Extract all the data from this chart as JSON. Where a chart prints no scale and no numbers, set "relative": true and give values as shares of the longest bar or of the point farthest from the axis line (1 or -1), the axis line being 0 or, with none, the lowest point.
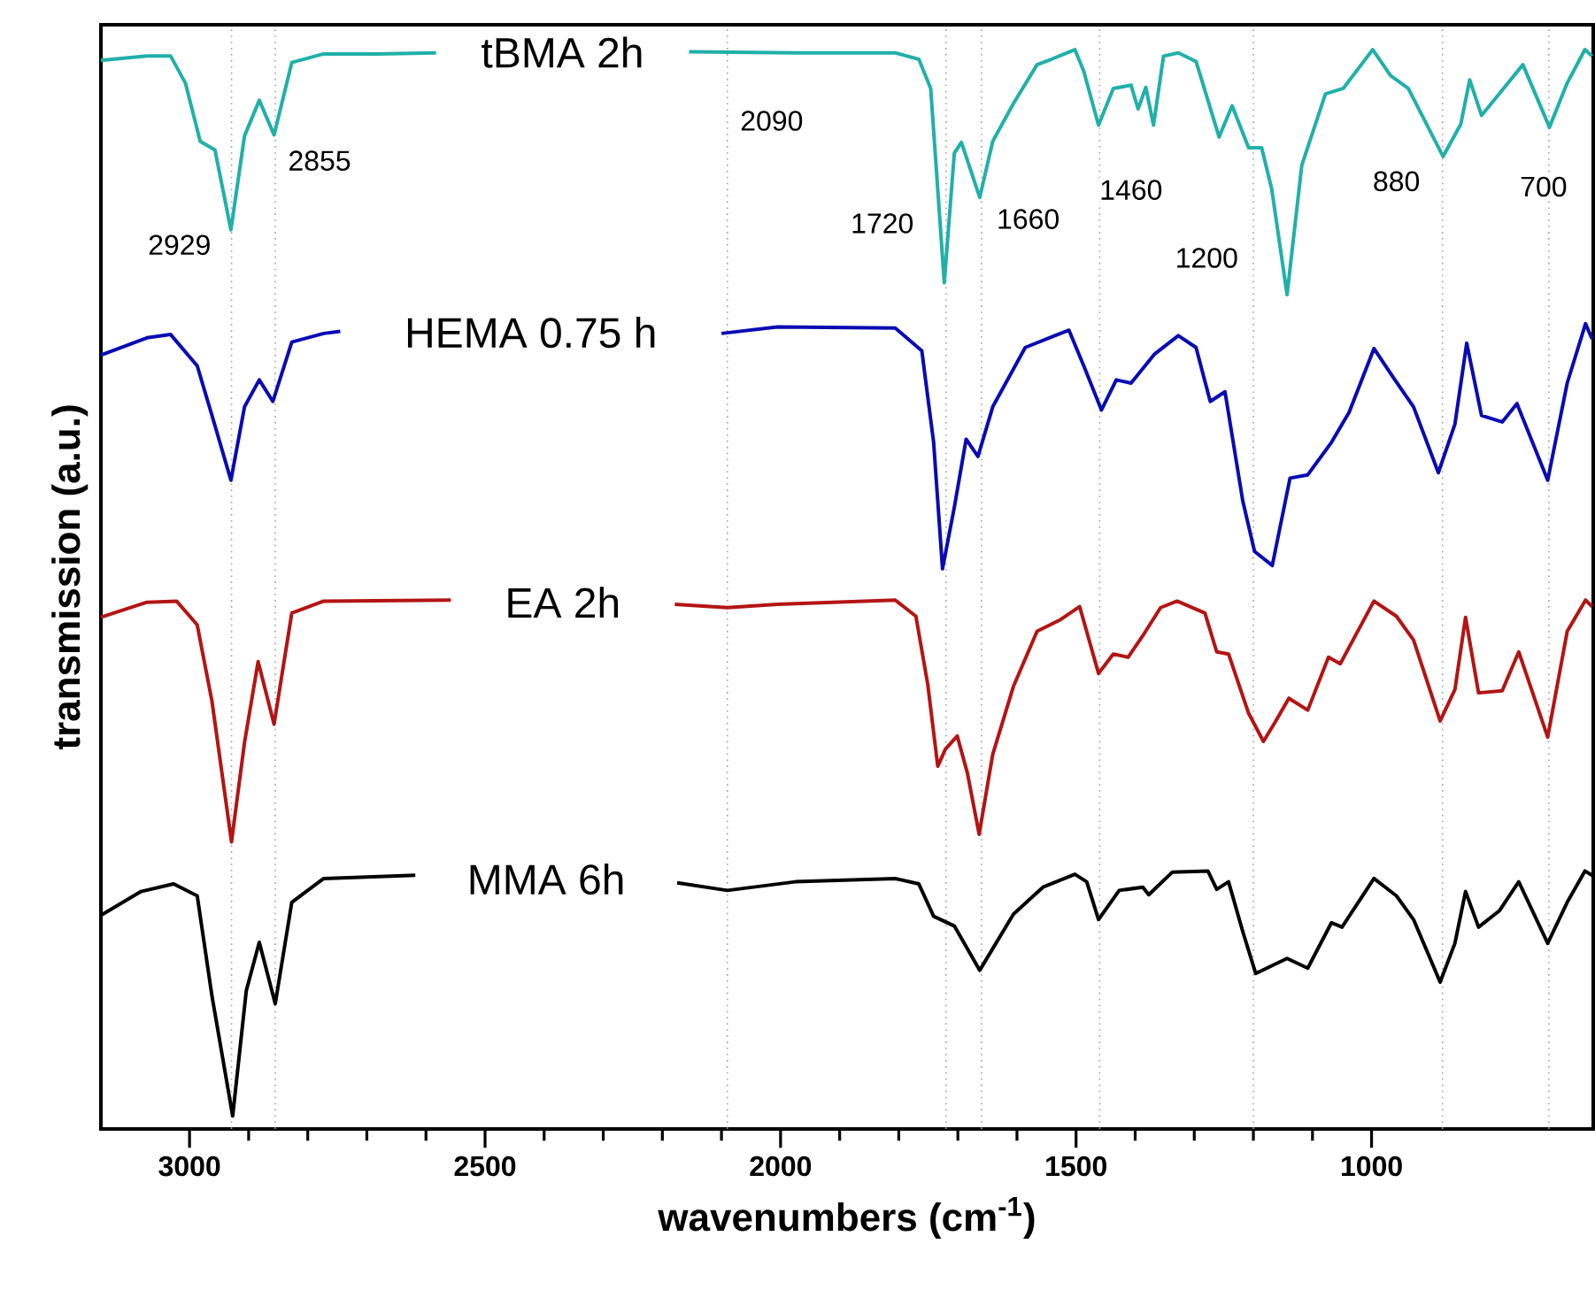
{
  "chart_data": {
    "type": "line",
    "relative": true,
    "xlabel": "wavenumbers (cm$^{-1}$)",
    "ylabel": "transmission (a.u.)",
    "xlim": [
      3150,
      625
    ],
    "xticks": [
      3000,
      2500,
      2000,
      1500,
      1000
    ],
    "line_style": "solid",
    "series": [
      {
        "name": "tBMA 2h",
        "color": "#20b0a8",
        "x": [
          3150,
          3072,
          3032,
          3007,
          2982,
          2957,
          2930,
          2907,
          2882,
          2857,
          2827,
          2773,
          2683,
          2583,
          2370,
          2155,
          1975,
          1806,
          1766,
          1746,
          1723,
          1706,
          1694,
          1663,
          1641,
          1606,
          1566,
          1542,
          1502,
          1487,
          1462,
          1437,
          1407,
          1395,
          1382,
          1369,
          1352,
          1327,
          1297,
          1258,
          1236,
          1208,
          1186,
          1169,
          1143,
          1118,
          1078,
          1048,
          998,
          968,
          938,
          879,
          849,
          834,
          814,
          784,
          744,
          699,
          669,
          639,
          627
        ],
        "values": [
          0.99,
          0.994,
          0.994,
          0.969,
          0.915,
          0.907,
          0.833,
          0.92,
          0.953,
          0.921,
          0.988,
          0.996,
          0.996,
          0.997,
          null,
          0.998,
          0.997,
          0.997,
          0.991,
          0.964,
          0.784,
          0.904,
          0.914,
          0.863,
          0.915,
          0.95,
          0.986,
          0.991,
          1.0,
          0.98,
          0.93,
          0.964,
          0.967,
          0.945,
          0.965,
          0.93,
          0.994,
          0.997,
          0.989,
          0.919,
          0.948,
          0.909,
          0.909,
          0.871,
          0.773,
          0.893,
          0.959,
          0.964,
          1.0,
          0.976,
          0.964,
          0.901,
          0.931,
          0.972,
          0.939,
          0.959,
          0.986,
          0.928,
          0.969,
          1.0,
          0.994
        ]
      },
      {
        "name": "HEMA 0.75 h",
        "color": "#0a0ab4",
        "x": [
          3150,
          3072,
          3032,
          2987,
          2962,
          2930,
          2907,
          2882,
          2859,
          2827,
          2773,
          2745,
          2420,
          2100,
          2005,
          1806,
          1761,
          1741,
          1726,
          1706,
          1686,
          1666,
          1641,
          1586,
          1536,
          1512,
          1487,
          1457,
          1432,
          1407,
          1367,
          1327,
          1297,
          1273,
          1248,
          1218,
          1198,
          1168,
          1138,
          1108,
          1068,
          1038,
          996,
          963,
          929,
          887,
          859,
          839,
          814,
          779,
          754,
          702,
          669,
          638,
          627
        ],
        "values": [
          0.717,
          0.733,
          0.736,
          0.707,
          0.661,
          0.601,
          0.669,
          0.694,
          0.674,
          0.729,
          0.737,
          0.739,
          null,
          0.737,
          0.743,
          0.742,
          0.721,
          0.636,
          0.519,
          0.576,
          0.639,
          0.623,
          0.669,
          0.724,
          0.735,
          0.74,
          0.707,
          0.666,
          0.694,
          0.691,
          0.718,
          0.735,
          0.724,
          0.674,
          0.683,
          0.582,
          0.535,
          0.522,
          0.603,
          0.606,
          0.636,
          0.664,
          0.723,
          0.696,
          0.669,
          0.608,
          0.653,
          0.728,
          0.661,
          0.655,
          0.672,
          0.601,
          0.691,
          0.746,
          0.732
        ]
      },
      {
        "name": "EA 2h",
        "color": "#b41414",
        "x": [
          3150,
          3072,
          3022,
          2987,
          2962,
          2929,
          2907,
          2884,
          2857,
          2827,
          2773,
          2558,
          2370,
          2179,
          2090,
          2005,
          1806,
          1771,
          1751,
          1734,
          1721,
          1701,
          1684,
          1664,
          1641,
          1606,
          1566,
          1526,
          1494,
          1462,
          1437,
          1412,
          1387,
          1357,
          1329,
          1282,
          1262,
          1242,
          1208,
          1183,
          1163,
          1140,
          1108,
          1073,
          1053,
          996,
          958,
          929,
          884,
          859,
          841,
          819,
          779,
          751,
          702,
          669,
          638,
          627
        ],
        "values": [
          0.474,
          0.488,
          0.489,
          0.467,
          0.396,
          0.266,
          0.358,
          0.433,
          0.375,
          0.478,
          0.489,
          0.49,
          null,
          0.486,
          0.483,
          0.486,
          0.49,
          0.475,
          0.412,
          0.336,
          0.352,
          0.364,
          0.33,
          0.273,
          0.347,
          0.41,
          0.461,
          0.472,
          0.484,
          0.422,
          0.44,
          0.437,
          0.457,
          0.483,
          0.489,
          0.478,
          0.442,
          0.44,
          0.385,
          0.359,
          0.377,
          0.399,
          0.388,
          0.437,
          0.431,
          0.489,
          0.475,
          0.453,
          0.378,
          0.407,
          0.474,
          0.404,
          0.406,
          0.442,
          0.363,
          0.461,
          0.49,
          0.484
        ]
      },
      {
        "name": "MMA 6h",
        "color": "#000000",
        "x": [
          3150,
          3082,
          3027,
          2987,
          2962,
          2927,
          2904,
          2882,
          2855,
          2827,
          2773,
          2618,
          2400,
          2175,
          2090,
          1975,
          1806,
          1766,
          1741,
          1706,
          1663,
          1606,
          1556,
          1502,
          1482,
          1462,
          1427,
          1387,
          1377,
          1337,
          1277,
          1262,
          1242,
          1218,
          1196,
          1143,
          1108,
          1068,
          1050,
          996,
          958,
          929,
          884,
          859,
          841,
          819,
          784,
          751,
          702,
          669,
          639,
          627
        ],
        "values": [
          0.198,
          0.22,
          0.227,
          0.216,
          0.123,
          0.012,
          0.128,
          0.173,
          0.116,
          0.21,
          0.232,
          0.235,
          null,
          0.228,
          0.221,
          0.229,
          0.232,
          0.227,
          0.197,
          0.188,
          0.147,
          0.199,
          0.224,
          0.236,
          0.229,
          0.194,
          0.221,
          0.224,
          0.217,
          0.238,
          0.239,
          0.222,
          0.229,
          0.183,
          0.144,
          0.158,
          0.149,
          0.191,
          0.187,
          0.232,
          0.216,
          0.194,
          0.136,
          0.172,
          0.22,
          0.187,
          0.202,
          0.229,
          0.172,
          0.21,
          0.239,
          0.235
        ]
      }
    ],
    "ref_lines": [
      {
        "axis": "x",
        "value": 2929,
        "color": "#a0a0a0",
        "line_style": "dotted"
      },
      {
        "axis": "x",
        "value": 2855,
        "color": "#a0a0a0",
        "line_style": "dotted"
      },
      {
        "axis": "x",
        "value": 2090,
        "color": "#a0a0a0",
        "line_style": "dotted"
      },
      {
        "axis": "x",
        "value": 1720,
        "color": "#a0a0a0",
        "line_style": "dotted"
      },
      {
        "axis": "x",
        "value": 1660,
        "color": "#a0a0a0",
        "line_style": "dotted"
      },
      {
        "axis": "x",
        "value": 1460,
        "color": "#a0a0a0",
        "line_style": "dotted"
      },
      {
        "axis": "x",
        "value": 1200,
        "color": "#a0a0a0",
        "line_style": "dotted"
      },
      {
        "axis": "x",
        "value": 880,
        "color": "#a0a0a0",
        "line_style": "dotted"
      },
      {
        "axis": "x",
        "value": 700,
        "color": "#a0a0a0",
        "line_style": "dotted"
      }
    ],
    "annotations": [
      {
        "text": "2929",
        "x": 3017,
        "y": 0.819
      },
      {
        "text": "2855",
        "x": 2780,
        "y": 0.897
      },
      {
        "text": "2090",
        "x": 2015,
        "y": 0.934
      },
      {
        "text": "1720",
        "x": 1828,
        "y": 0.839
      },
      {
        "text": "1660",
        "x": 1581,
        "y": 0.843
      },
      {
        "text": "1460",
        "x": 1407,
        "y": 0.87
      },
      {
        "text": "1200",
        "x": 1279,
        "y": 0.807
      },
      {
        "text": "880",
        "x": 958,
        "y": 0.878
      },
      {
        "text": "700",
        "x": 709,
        "y": 0.873
      }
    ]
  }
}
